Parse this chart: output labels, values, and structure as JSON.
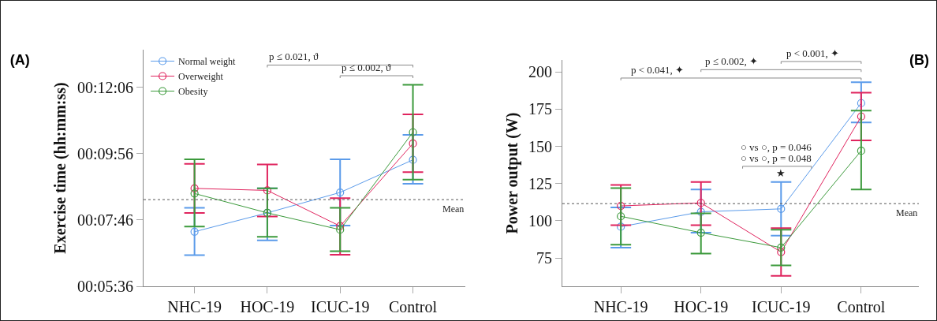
{
  "chart_data": [
    {
      "type": "line",
      "title": "(A)",
      "ylabel": "Exercise time (hh:mm:ss)",
      "categories": [
        "NHC-19",
        "HOC-19",
        "ICUC-19",
        "Control"
      ],
      "series": [
        {
          "name": "Normal weight",
          "color": "#5b9bea",
          "values": [
            443,
            480,
            520,
            584
          ],
          "errors": [
            [
              397,
              490
            ],
            [
              426,
              528
            ],
            [
              455,
              585
            ],
            [
              537,
              633
            ]
          ]
        },
        {
          "name": "Overweight",
          "color": "#e0245e",
          "values": [
            528,
            524,
            454,
            616
          ],
          "errors": [
            [
              480,
              576
            ],
            [
              473,
              575
            ],
            [
              398,
              509
            ],
            [
              560,
              673
            ]
          ]
        },
        {
          "name": "Obesity",
          "color": "#3c9a3c",
          "values": [
            518,
            480,
            447,
            638
          ],
          "errors": [
            [
              453,
              585
            ],
            [
              433,
              528
            ],
            [
              405,
              490
            ],
            [
              545,
              731
            ]
          ]
        }
      ],
      "ylim": [
        336,
        800
      ],
      "yticks": [
        {
          "value": 336,
          "label": "00:05:36"
        },
        {
          "value": 466,
          "label": "00:07:46"
        },
        {
          "value": 596,
          "label": "00:09:56"
        },
        {
          "value": 726,
          "label": "00:12:06"
        }
      ],
      "ref_lines": [
        {
          "axis": "y",
          "value": 506,
          "label": "Mean",
          "line_style": "dotted",
          "color": "#555555"
        }
      ],
      "annotations": [
        "p ≤ 0.021, ϑ",
        "p ≤ 0.002, ϑ"
      ],
      "legend": "top left",
      "marker": "circle",
      "line_style": "solid",
      "grid": false
    },
    {
      "type": "line",
      "title": "(B)",
      "ylabel": "Power output (W)",
      "categories": [
        "NHC-19",
        "HOC-19",
        "ICUC-19",
        "Control"
      ],
      "series": [
        {
          "color": "#5b9bea",
          "values": [
            96,
            106,
            108,
            179
          ],
          "errors": [
            [
              82,
              109
            ],
            [
              92,
              121
            ],
            [
              90,
              126
            ],
            [
              166,
              193
            ]
          ]
        },
        {
          "color": "#e0245e",
          "values": [
            110,
            112,
            79,
            170
          ],
          "errors": [
            [
              97,
              124
            ],
            [
              97,
              126
            ],
            [
              63,
              95
            ],
            [
              154,
              186
            ]
          ]
        },
        {
          "color": "#3c9a3c",
          "values": [
            103,
            92,
            82,
            147
          ],
          "errors": [
            [
              84,
              122
            ],
            [
              78,
              105
            ],
            [
              70,
              94
            ],
            [
              121,
              174
            ]
          ]
        }
      ],
      "ylim": [
        56,
        208
      ],
      "yticks": [
        75,
        100,
        125,
        150,
        175,
        200
      ],
      "ref_lines": [
        {
          "axis": "y",
          "value": 111.5,
          "label": "Mean",
          "line_style": "dotted",
          "color": "#555555"
        }
      ],
      "annotations": [
        "p < 0.041, ✦",
        "p ≤ 0.002, ✦",
        "p < 0.001, ✦",
        "○ vs ○, p = 0.046",
        "○ vs ○, p = 0.048",
        "★"
      ],
      "legend": false,
      "marker": "circle",
      "line_style": "solid",
      "grid": false
    }
  ]
}
